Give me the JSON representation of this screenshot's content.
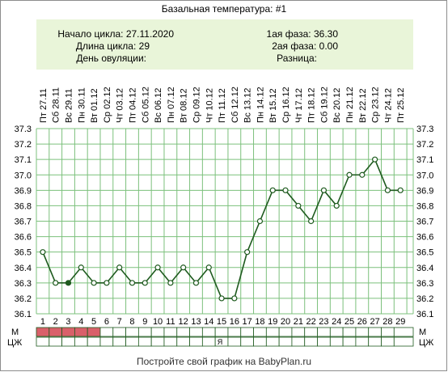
{
  "title": "Базальная температура: #1",
  "info": {
    "cycle_start": "Начало цикла: 27.11.2020",
    "cycle_length": "Длина цикла: 29",
    "ovulation_day": "День овуляции:",
    "phase1": "1ая фаза: 36.30",
    "phase2": "2ая фаза: 0.00",
    "difference": "Разница:"
  },
  "footer": "Постройте свой график на BabyPlan.ru",
  "colors": {
    "line": "#1e5a1e",
    "grid": "#7cc07c",
    "info_bg": "#e9f5d9",
    "menstruation": "#d9606a"
  },
  "row_labels": {
    "m": "М",
    "cm": "ЦЖ"
  },
  "chart_data": {
    "type": "line",
    "x": [
      1,
      2,
      3,
      4,
      5,
      6,
      7,
      8,
      9,
      10,
      11,
      12,
      13,
      14,
      15,
      16,
      17,
      18,
      19,
      20,
      21,
      22,
      23,
      24,
      25,
      26,
      27,
      28,
      29
    ],
    "dates": [
      "Пт 27.11",
      "Сб 28.11",
      "Вс 29.11",
      "Пн 30.11",
      "Вт 01.12",
      "Ср 02.12",
      "Чт 03.12",
      "Пт 04.12",
      "Сб 05.12",
      "Вс 06.12",
      "Пн 07.12",
      "Вт 08.12",
      "Ср 09.12",
      "Чт 10.12",
      "Пт 11.12",
      "Сб 12.12",
      "Вс 13.12",
      "Пн 14.12",
      "Вт 15.12",
      "Ср 16.12",
      "Чт 17.12",
      "Пт 18.12",
      "Сб 19.12",
      "Вс 20.12",
      "Пн 21.12",
      "Вт 22.12",
      "Ср 23.12",
      "Чт 24.12",
      "Пт 25.12"
    ],
    "values": [
      36.5,
      36.3,
      36.3,
      36.4,
      36.3,
      36.3,
      36.4,
      36.3,
      36.3,
      36.4,
      36.3,
      36.4,
      36.3,
      36.4,
      36.2,
      36.2,
      36.5,
      36.7,
      36.9,
      36.9,
      36.8,
      36.7,
      36.9,
      36.8,
      37.0,
      37.0,
      37.1,
      36.9,
      36.9
    ],
    "filled_points": [
      3
    ],
    "y_ticks": [
      "36.1",
      "36.2",
      "36.3",
      "36.4",
      "36.5",
      "36.6",
      "36.7",
      "36.8",
      "36.9",
      "37.0",
      "37.1",
      "37.2",
      "37.3"
    ],
    "ylim": [
      36.1,
      37.3
    ],
    "menstruation_days": [
      1,
      2,
      3,
      4,
      5
    ],
    "cm_marks": [
      {
        "day": 15,
        "label": "Я"
      }
    ],
    "grid": true
  }
}
